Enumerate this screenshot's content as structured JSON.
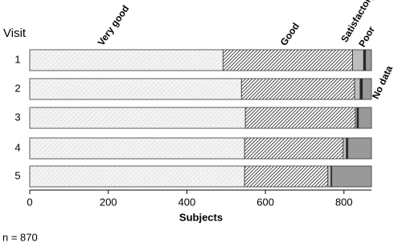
{
  "chart_data": {
    "type": "stacked-barh",
    "y_label": "Visit",
    "x_label": "Subjects",
    "annotation": "n = 870",
    "categories": [
      "1",
      "2",
      "3",
      "4",
      "5"
    ],
    "series": [
      {
        "name": "Very good",
        "color": "#9a9a9a",
        "values": [
          492,
          539,
          549,
          547,
          547
        ]
      },
      {
        "name": "Good",
        "color": "#1a1a1a",
        "values": [
          330,
          288,
          280,
          251,
          212
        ]
      },
      {
        "name": "Satisfactory",
        "color": "#bdbdbd",
        "values": [
          28,
          14,
          4,
          8,
          8
        ]
      },
      {
        "name": "Poor",
        "color": "#222222",
        "values": [
          5,
          6,
          4,
          4,
          2
        ]
      },
      {
        "name": "No data",
        "color": "#999999",
        "values": [
          15,
          23,
          33,
          60,
          101
        ]
      }
    ],
    "xlim": [
      0,
      870
    ],
    "xticks": [
      0,
      200,
      400,
      600,
      800
    ]
  }
}
